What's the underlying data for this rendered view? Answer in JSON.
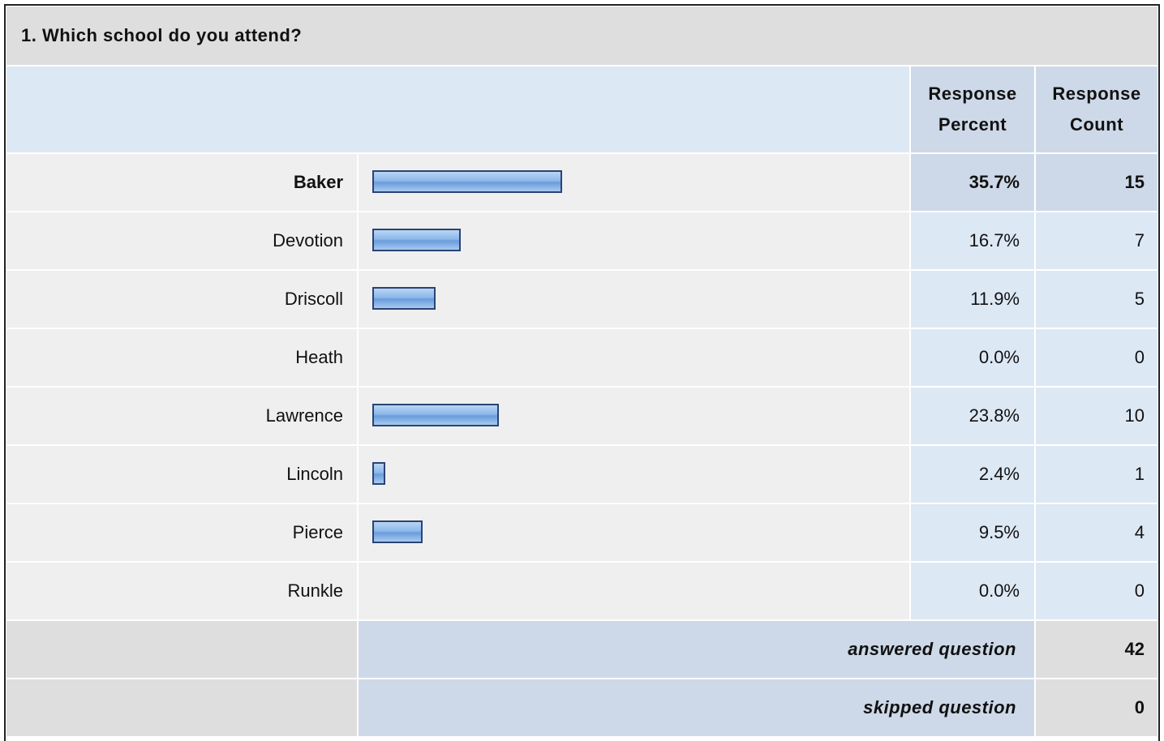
{
  "chart_data": {
    "type": "bar",
    "title": "1. Which school do you attend?",
    "column_headers": [
      "Response Percent",
      "Response Count"
    ],
    "categories": [
      "Baker",
      "Devotion",
      "Driscoll",
      "Heath",
      "Lawrence",
      "Lincoln",
      "Pierce",
      "Runkle"
    ],
    "values": [
      35.7,
      16.7,
      11.9,
      0,
      23.8,
      2.4,
      9.5,
      0
    ],
    "value_labels": [
      "35.7%",
      "16.7%",
      "11.9%",
      "0.0%",
      "23.8%",
      "2.4%",
      "9.5%",
      "0.0%"
    ],
    "counts": [
      15,
      7,
      5,
      0,
      10,
      1,
      4,
      0
    ],
    "color": "#8db8ea",
    "summary": [
      {
        "label": "answered question",
        "value": 42
      },
      {
        "label": "skipped question",
        "value": 0
      }
    ]
  }
}
